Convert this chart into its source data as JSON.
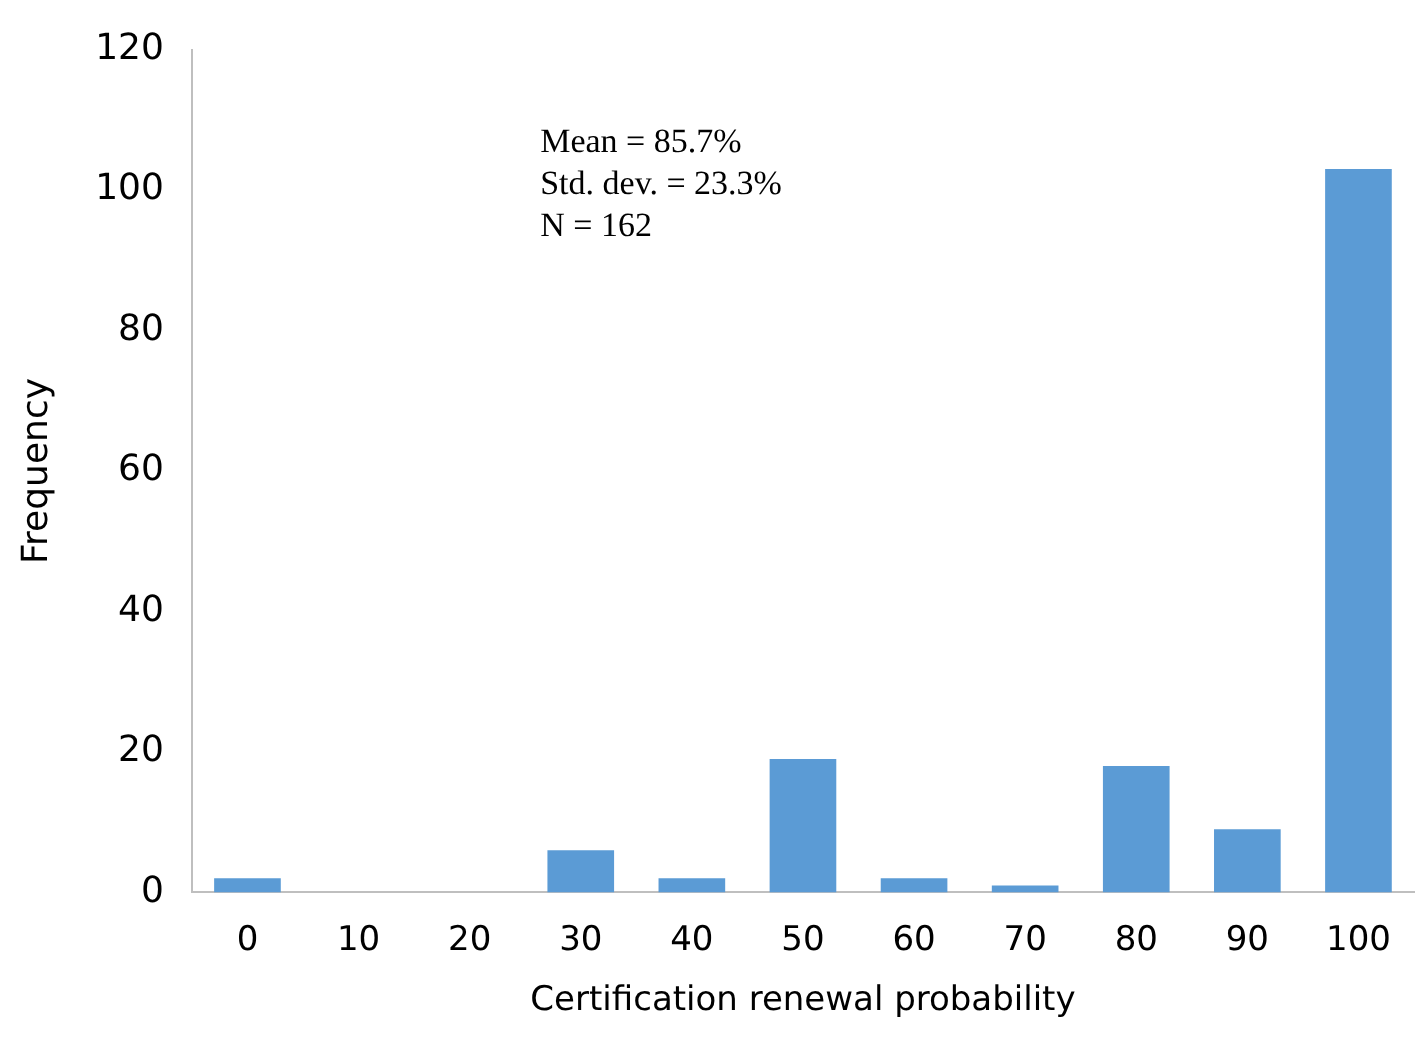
{
  "chart_data": {
    "type": "bar",
    "xlabel": "Certification renewal probability",
    "ylabel": "Frequency",
    "categories": [
      "0",
      "10",
      "20",
      "30",
      "40",
      "50",
      "60",
      "70",
      "80",
      "90",
      "100"
    ],
    "values": [
      2,
      0,
      0,
      6,
      2,
      19,
      2,
      1,
      18,
      9,
      103
    ],
    "color": "#5b9bd5",
    "ylim": [
      0,
      120
    ],
    "yticks": [
      0,
      20,
      40,
      60,
      80,
      100,
      120
    ],
    "grid": false,
    "legend": false,
    "annotations": [
      "Mean = 85.7%",
      "Std. dev. = 23.3%",
      "N = 162"
    ]
  }
}
